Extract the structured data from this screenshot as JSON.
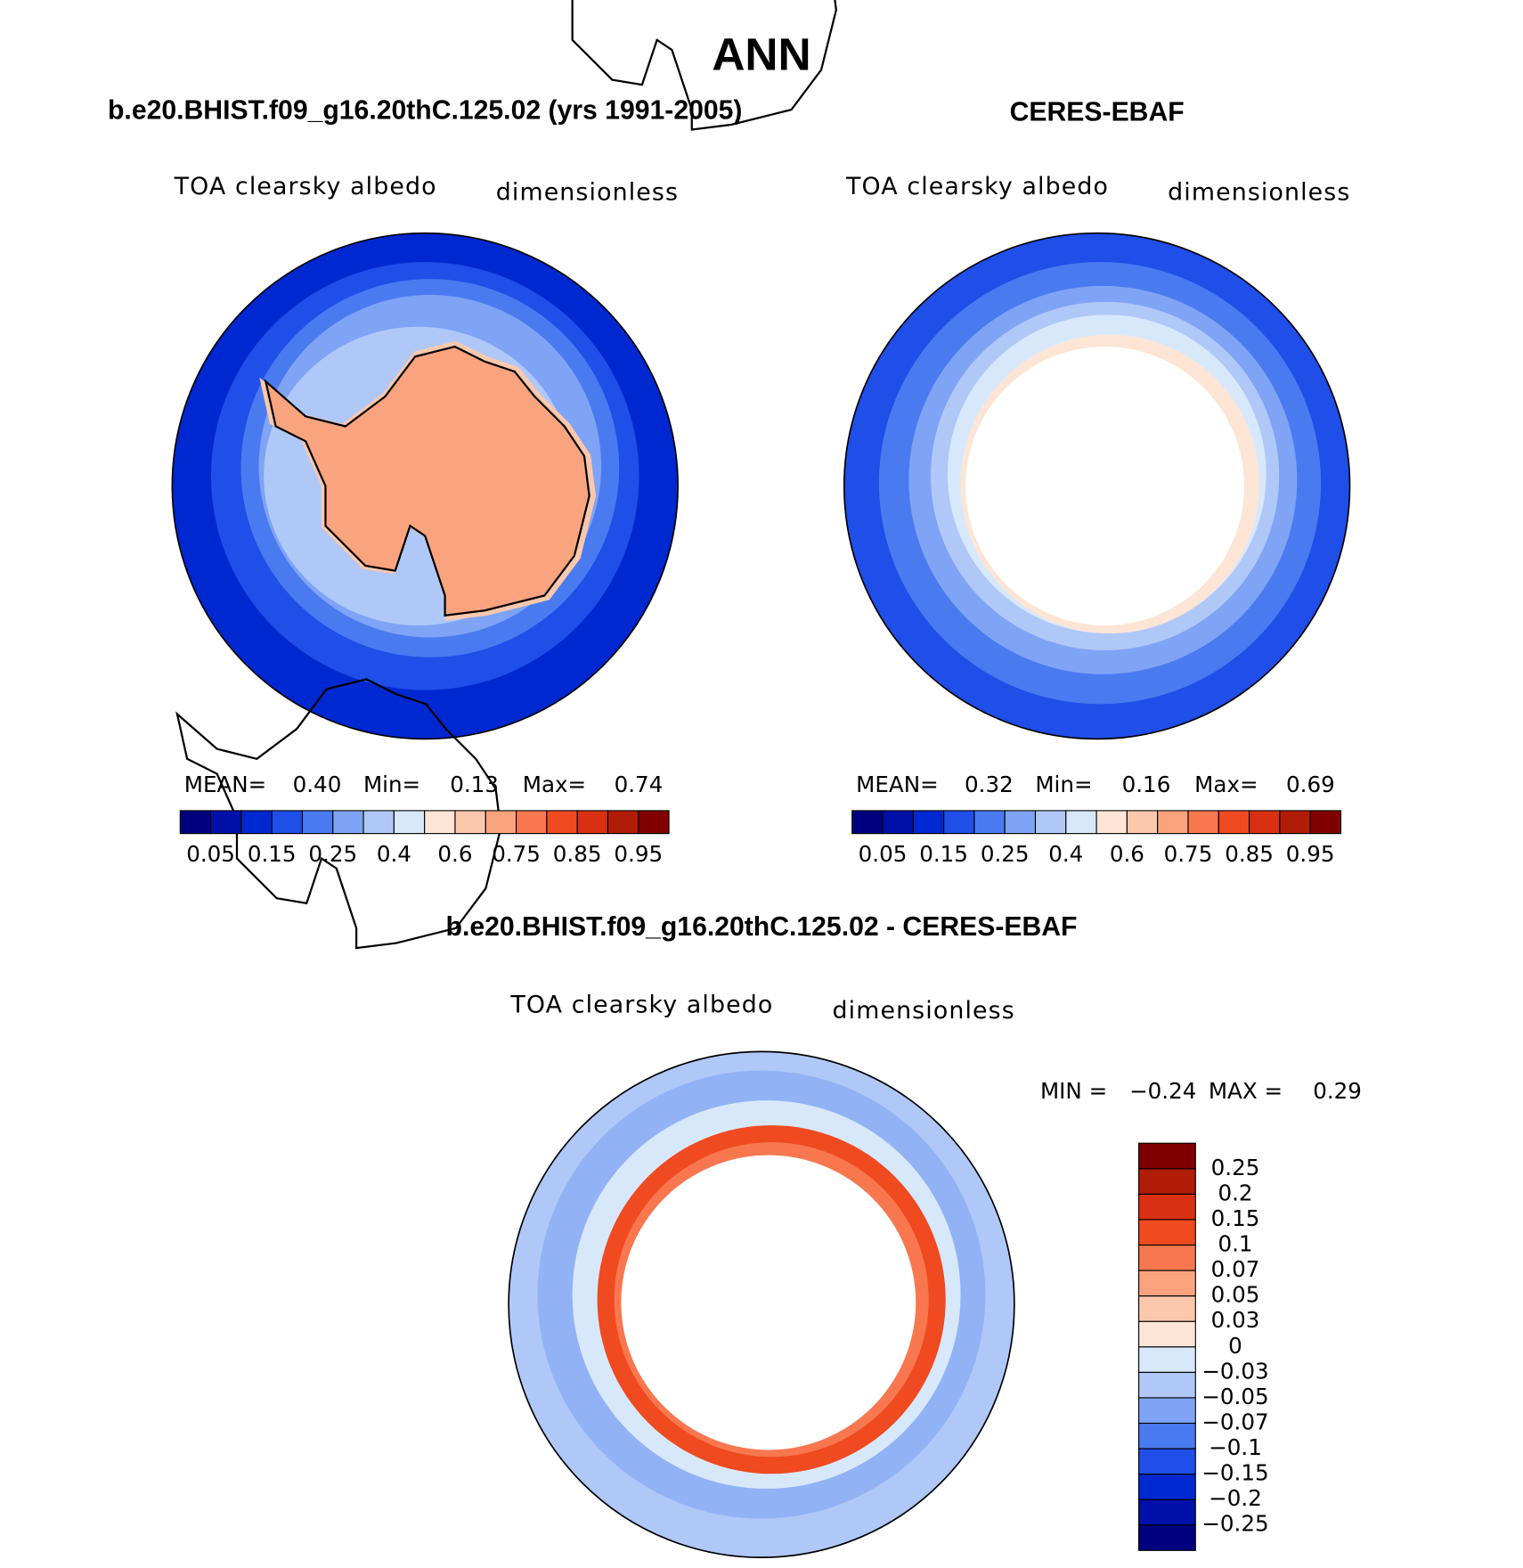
{
  "title": "ANN",
  "panels": [
    {
      "title": "b.e20.BHIST.f09_g16.20thC.125.02 (yrs 1991-2005)",
      "left_label": "TOA clearsky albedo",
      "right_label": "dimensionless",
      "stats": [
        "MEAN=",
        "0.40",
        "Min=",
        "0.13",
        "Max=",
        "0.74"
      ],
      "colorbar_labels": [
        "0.05",
        "0.15",
        "0.25",
        "0.4",
        "0.6",
        "0.75",
        "0.85",
        "0.95"
      ]
    },
    {
      "title": "CERES-EBAF",
      "left_label": "TOA clearsky albedo",
      "right_label": "dimensionless",
      "stats": [
        "MEAN=",
        "0.32",
        "Min=",
        "0.16",
        "Max=",
        "0.69"
      ],
      "colorbar_labels": [
        "0.05",
        "0.15",
        "0.25",
        "0.4",
        "0.6",
        "0.75",
        "0.85",
        "0.95"
      ]
    },
    {
      "title": "b.e20.BHIST.f09_g16.20thC.125.02 - CERES-EBAF",
      "left_label": "TOA clearsky albedo",
      "right_label": "dimensionless",
      "stats": [
        "MIN =",
        "−0.24",
        "MAX =",
        "0.29"
      ],
      "colorbar_labels": [
        "0.25",
        "0.2",
        "0.15",
        "0.1",
        "0.07",
        "0.05",
        "0.03",
        "0",
        "−0.03",
        "−0.05",
        "−0.07",
        "−0.1",
        "−0.15",
        "−0.2",
        "−0.25"
      ]
    }
  ],
  "colorbar_colors": [
    "#00007f",
    "#0010a8",
    "#0028d0",
    "#1f4ee8",
    "#4a7af0",
    "#7fa4f5",
    "#b0c8f8",
    "#d8e8fb",
    "#fde5d5",
    "#fcc8ac",
    "#faa47f",
    "#f8774f",
    "#f04a20",
    "#d83010",
    "#b01c08",
    "#800000"
  ]
}
